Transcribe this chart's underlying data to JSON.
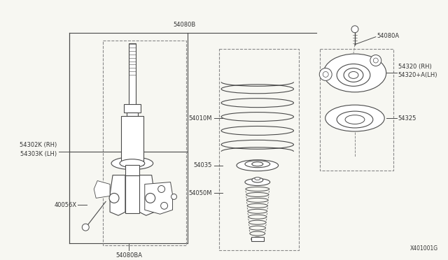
{
  "bg_color": "#f7f7f2",
  "line_color": "#4a4a4a",
  "dashed_color": "#888888",
  "text_color": "#333333",
  "footer": "X401001G",
  "label_54080B": "54080B",
  "label_54080A": "54080A",
  "label_54320": "54320 (RH)\n54320+A(LH)",
  "label_54325": "54325",
  "label_54010M": "54010M",
  "label_54035": "54035",
  "label_54050M": "54050M",
  "label_54302K": "54302K (RH)\n54303K (LH)",
  "label_40056X": "40056X",
  "label_54080BA": "54080BA"
}
